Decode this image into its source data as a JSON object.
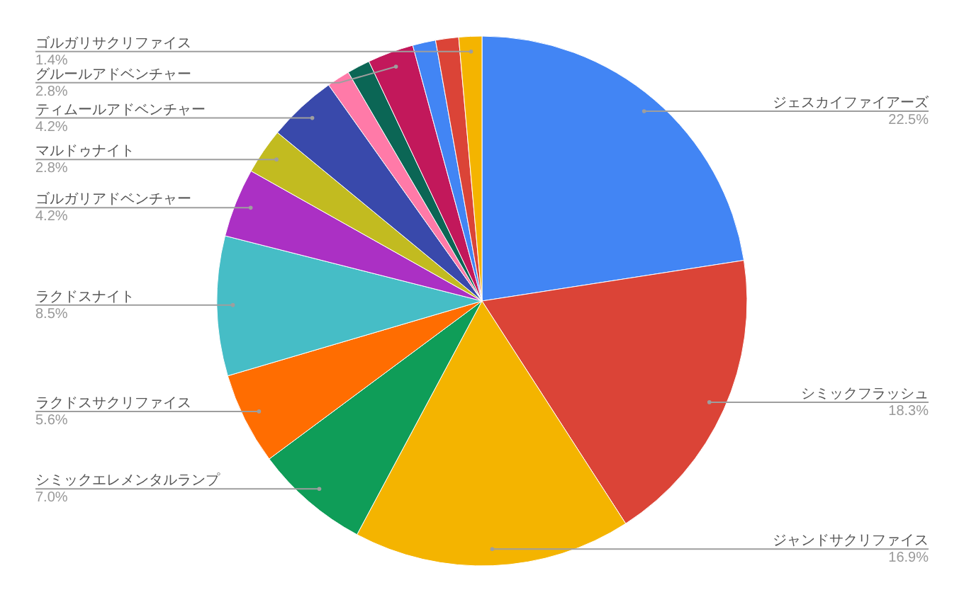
{
  "chart_data": {
    "type": "pie",
    "categories": [
      "ジェスカイファイアーズ",
      "シミックフラッシュ",
      "ジャンドサクリファイス",
      "シミックエレメンタルランプ",
      "ラクドスサクリファイス",
      "ラクドスナイト",
      "ゴルガリアドベンチャー",
      "マルドゥナイト",
      "ティムールアドベンチャー",
      null,
      null,
      "グルールアドベンチャー",
      null,
      null,
      "ゴルガリサクリファイス"
    ],
    "values": [
      22.5,
      18.3,
      16.9,
      7.0,
      5.6,
      8.5,
      4.2,
      2.8,
      4.2,
      1.4,
      1.4,
      2.8,
      1.4,
      1.4,
      1.4
    ],
    "colors": [
      "#4285f4",
      "#db4437",
      "#f4b400",
      "#0f9d58",
      "#ff6d01",
      "#46bdc6",
      "#ab30c4",
      "#c2bb20",
      "#3949ab",
      "#ff7aa8",
      "#0b6655",
      "#c2185b",
      "#4285f4",
      "#db4437",
      "#f4b400"
    ],
    "value_labels": [
      "22.5%",
      "18.3%",
      "16.9%",
      "7.0%",
      "5.6%",
      "8.5%",
      "4.2%",
      "2.8%",
      "4.2%",
      null,
      null,
      "2.8%",
      null,
      null,
      "1.4%"
    ]
  }
}
